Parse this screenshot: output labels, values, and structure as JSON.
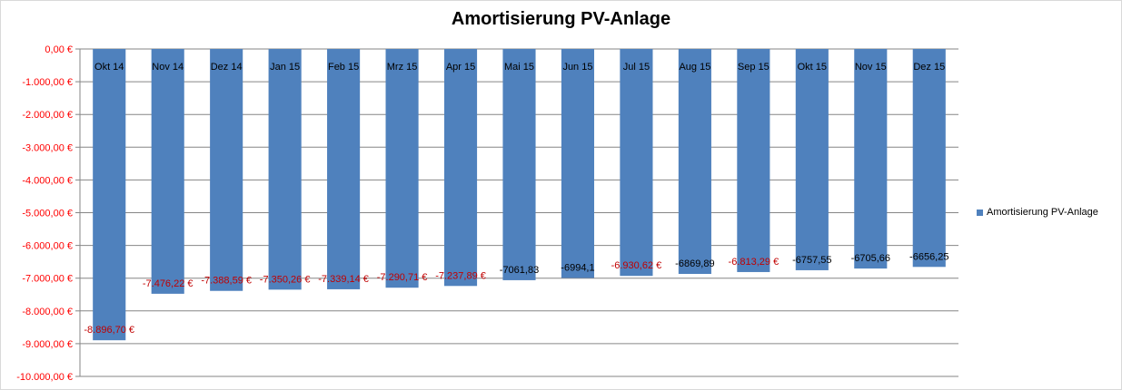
{
  "chart_data": {
    "type": "bar",
    "title": "Amortisierung PV-Anlage",
    "categories": [
      "Okt 14",
      "Nov 14",
      "Dez 14",
      "Jan 15",
      "Feb 15",
      "Mrz 15",
      "Apr 15",
      "Mai 15",
      "Jun 15",
      "Jul 15",
      "Aug 15",
      "Sep 15",
      "Okt 15",
      "Nov 15",
      "Dez 15"
    ],
    "series": [
      {
        "name": "Amortisierung PV-Anlage",
        "color": "#4f81bd",
        "values": [
          -8896.7,
          -7476.22,
          -7388.59,
          -7350.26,
          -7339.14,
          -7290.71,
          -7237.89,
          -7061.83,
          -6994.1,
          -6930.62,
          -6869.89,
          -6813.29,
          -6757.55,
          -6705.66,
          -6656.25
        ]
      }
    ],
    "data_labels": [
      "-8.896,70 €",
      "-7.476,22 €",
      "-7.388,59 €",
      "-7.350,26 €",
      "-7.339,14 €",
      "-7.290,71 €",
      "-7.237,89 €",
      "-7061,83",
      "-6994,1",
      "-6.930,62 €",
      "-6869,89",
      "-6.813,29 €",
      "-6757,55",
      "-6705,66",
      "-6656,25"
    ],
    "data_label_colors": [
      "#c00000",
      "#c00000",
      "#c00000",
      "#c00000",
      "#c00000",
      "#c00000",
      "#c00000",
      "#000000",
      "#000000",
      "#c00000",
      "#000000",
      "#c00000",
      "#000000",
      "#000000",
      "#000000"
    ],
    "ylim": [
      -10000,
      0
    ],
    "yticks": [
      0,
      -1000,
      -2000,
      -3000,
      -4000,
      -5000,
      -6000,
      -7000,
      -8000,
      -9000,
      -10000
    ],
    "ytick_labels": [
      "0,00 €",
      "-1.000,00 €",
      "-2.000,00 €",
      "-3.000,00 €",
      "-4.000,00 €",
      "-5.000,00 €",
      "-6.000,00 €",
      "-7.000,00 €",
      "-8.000,00 €",
      "-9.000,00 €",
      "-10.000,00 €"
    ],
    "ytick_color": "#ff0000",
    "grid": true,
    "legend_position": "right"
  }
}
